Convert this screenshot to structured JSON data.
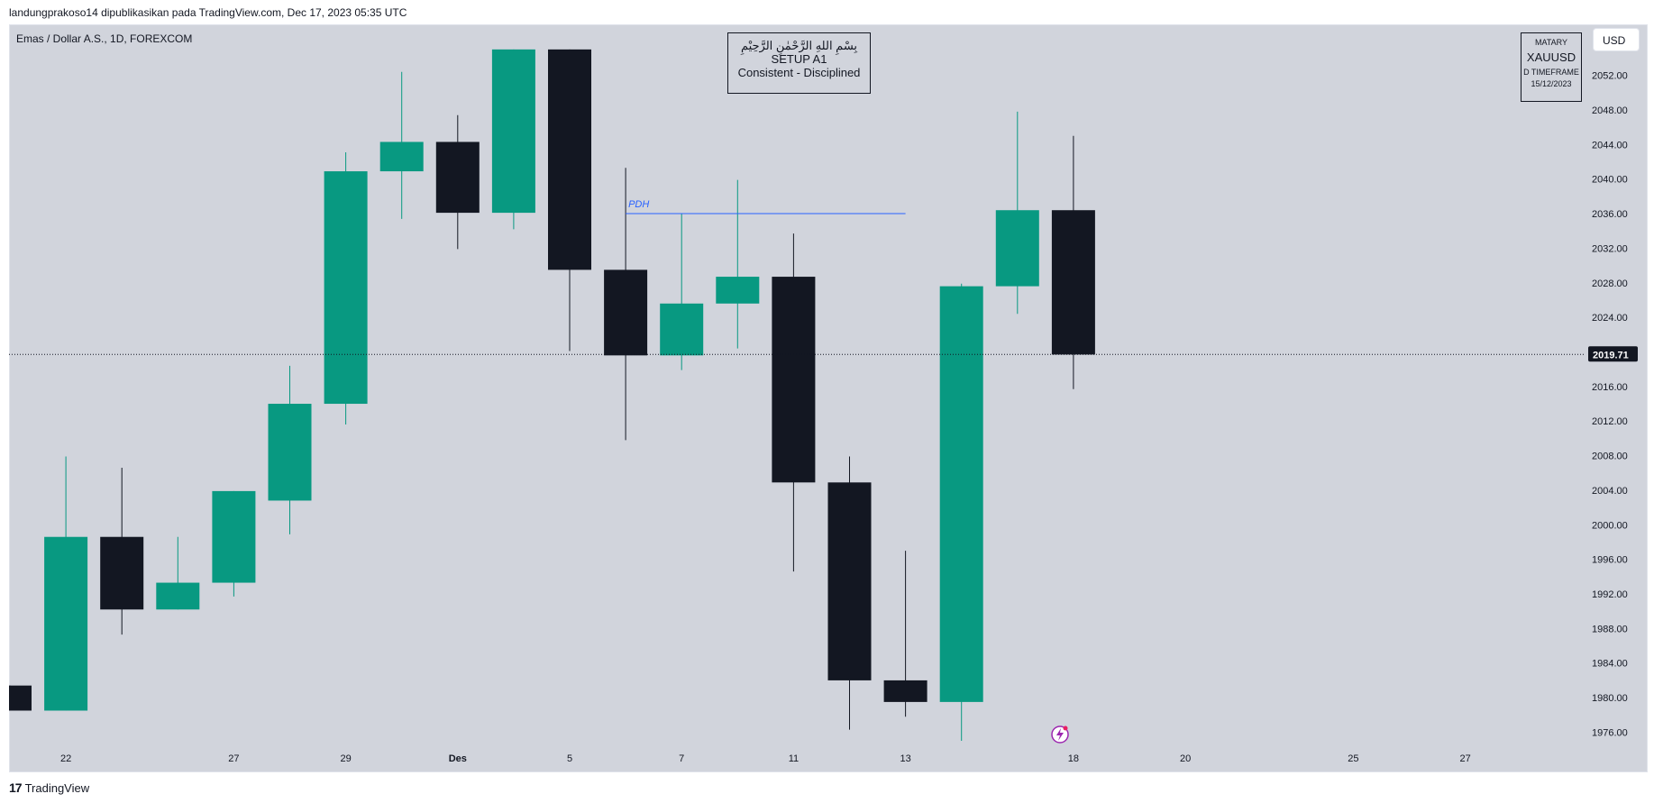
{
  "header": {
    "publish_text": "landungprakoso14 dipublikasikan pada TradingView.com, Dec 17, 2023 05:35 UTC"
  },
  "symbol": {
    "text": "Emas / Dollar A.S., 1D, FOREXCOM"
  },
  "setup_box": {
    "line1": "بِسْمِ اللهِ الرَّحْمٰنِ الرَّحِيْمِ",
    "line2": "SETUP A1",
    "line3": "Consistent - Disciplined"
  },
  "matary_box": {
    "title": "MATARY",
    "symbol": "XAUUSD",
    "timeframe": "D TIMEFRAME",
    "date": "15/12/2023"
  },
  "currency_button": "USD",
  "footer": {
    "brand": "TradingView",
    "logo": "17"
  },
  "colors": {
    "bull": "#089981",
    "bear": "#131722",
    "background": "#d1d4dc",
    "pdh_line": "#2962ff"
  },
  "chart_data": {
    "type": "candlestick",
    "price_scale": {
      "ylim": [
        1974,
        2055
      ],
      "ticks": [
        1976,
        1980,
        1984,
        1988,
        1992,
        1996,
        2000,
        2004,
        2008,
        2012,
        2016,
        2020,
        2024,
        2028,
        2032,
        2036,
        2040,
        2044,
        2048,
        2052
      ]
    },
    "tick_labels": [
      "1976.00",
      "1980.00",
      "1984.00",
      "1988.00",
      "1992.00",
      "1996.00",
      "2000.00",
      "2004.00",
      "2008.00",
      "2012.00",
      "2016.00",
      "2020.00",
      "2024.00",
      "2028.00",
      "2032.00",
      "2036.00",
      "2040.00",
      "2044.00",
      "2048.00",
      "2052.00"
    ],
    "current_price": 2019.71,
    "current_price_label": "2019.71",
    "x_labels": [
      {
        "label": "22",
        "index": 1
      },
      {
        "label": "27",
        "index": 4
      },
      {
        "label": "29",
        "index": 6
      },
      {
        "label": "Des",
        "index": 8
      },
      {
        "label": "5",
        "index": 10
      },
      {
        "label": "7",
        "index": 12
      },
      {
        "label": "11",
        "index": 14
      },
      {
        "label": "13",
        "index": 16
      },
      {
        "label": "18",
        "index": 19
      },
      {
        "label": "20",
        "index": 21
      },
      {
        "label": "25",
        "index": 24
      },
      {
        "label": "27",
        "index": 26
      }
    ],
    "candles": [
      {
        "o": 1981.4,
        "h": 1981.4,
        "l": 1978.5,
        "c": 1978.5
      },
      {
        "o": 1978.5,
        "h": 2007.9,
        "l": 1978.5,
        "c": 1998.6
      },
      {
        "o": 1998.6,
        "h": 2006.6,
        "l": 1987.3,
        "c": 1990.2
      },
      {
        "o": 1990.2,
        "h": 1998.6,
        "l": 1990.2,
        "c": 1993.3
      },
      {
        "o": 1993.3,
        "h": 2003.9,
        "l": 1991.7,
        "c": 2003.9
      },
      {
        "o": 2002.8,
        "h": 2018.4,
        "l": 1998.9,
        "c": 2014.0
      },
      {
        "o": 2014.0,
        "h": 2043.1,
        "l": 2011.6,
        "c": 2040.9
      },
      {
        "o": 2040.9,
        "h": 2052.4,
        "l": 2035.4,
        "c": 2044.3
      },
      {
        "o": 2044.3,
        "h": 2047.4,
        "l": 2031.9,
        "c": 2036.1
      },
      {
        "o": 2036.1,
        "h": 2055.0,
        "l": 2034.2,
        "c": 2055.0
      },
      {
        "o": 2055.0,
        "h": 2055.0,
        "l": 2020.1,
        "c": 2029.5
      },
      {
        "o": 2029.5,
        "h": 2041.3,
        "l": 2009.8,
        "c": 2019.6
      },
      {
        "o": 2019.6,
        "h": 2036.0,
        "l": 2017.9,
        "c": 2025.6
      },
      {
        "o": 2025.6,
        "h": 2039.9,
        "l": 2020.4,
        "c": 2028.7
      },
      {
        "o": 2028.7,
        "h": 2033.7,
        "l": 1994.6,
        "c": 2004.9
      },
      {
        "o": 2004.9,
        "h": 2007.9,
        "l": 1976.3,
        "c": 1982.0
      },
      {
        "o": 1982.0,
        "h": 1997.0,
        "l": 1977.8,
        "c": 1979.5
      },
      {
        "o": 1979.5,
        "h": 2027.9,
        "l": 1975.0,
        "c": 2027.6
      },
      {
        "o": 2027.6,
        "h": 2047.8,
        "l": 2024.4,
        "c": 2036.4
      },
      {
        "o": 2036.4,
        "h": 2045.0,
        "l": 2015.7,
        "c": 2019.7
      }
    ],
    "annotations": [
      {
        "label": "PDH",
        "price": 2036.0,
        "from_index": 11,
        "to_index": 16
      }
    ]
  }
}
